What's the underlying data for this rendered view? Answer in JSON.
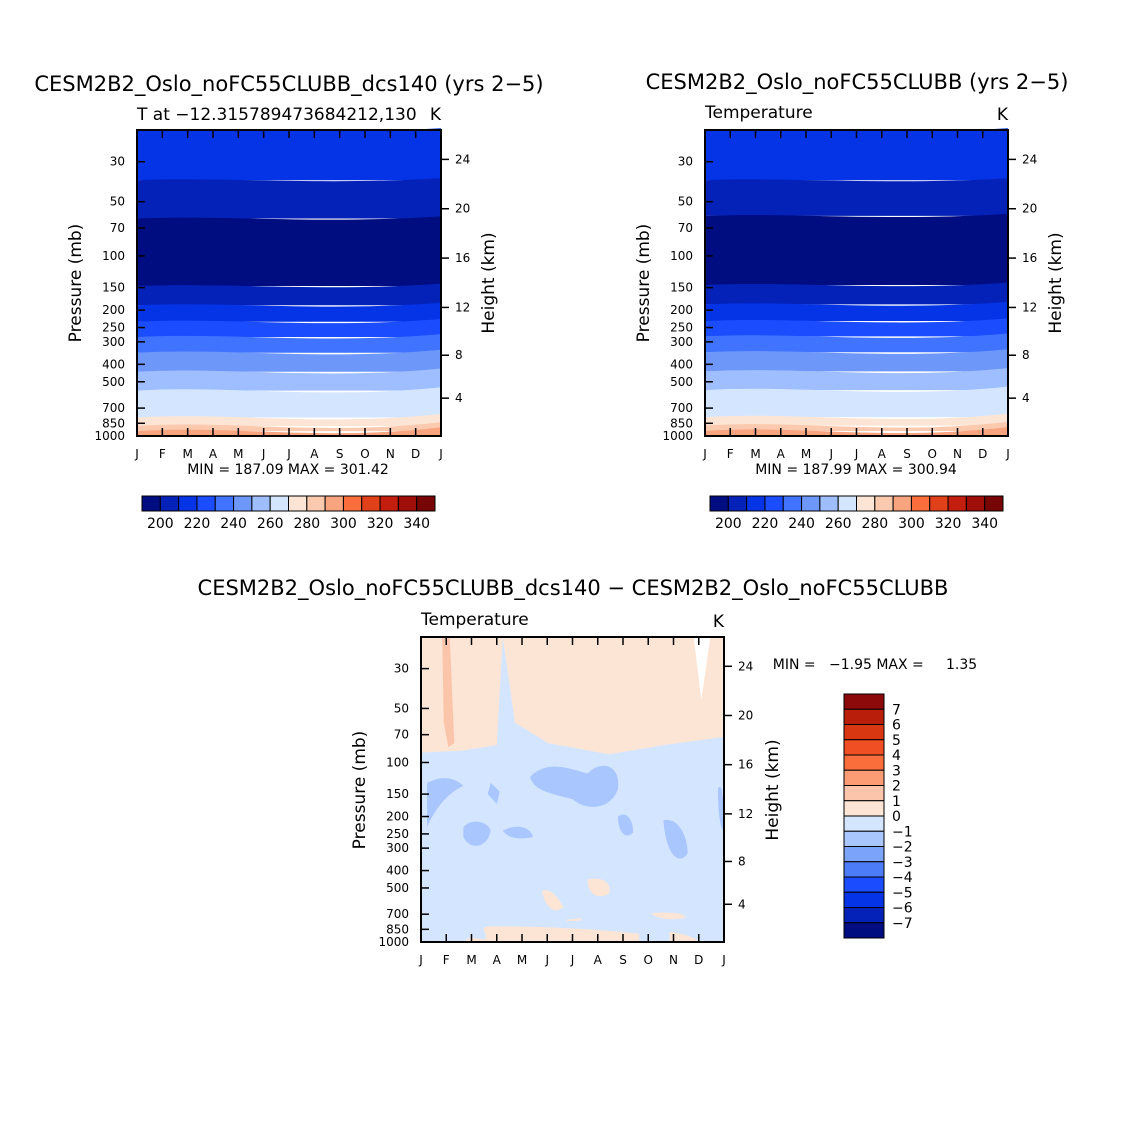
{
  "figure": {
    "background": "#ffffff"
  },
  "chart_data": [
    {
      "type": "contour",
      "title": "CESM2B2_Oslo_noFC55CLUBB_dcs140 (yrs 2−5)",
      "subtitle_left": "T at −12.315789473684212,130",
      "subtitle_right": "K",
      "xlabel": "",
      "ylabel": "Pressure (mb)",
      "ylabel_right": "Height (km)",
      "x_ticks": [
        "J",
        "F",
        "M",
        "A",
        "M",
        "J",
        "J",
        "A",
        "S",
        "O",
        "N",
        "D",
        "J"
      ],
      "y_ticks": [
        "30",
        "50",
        "70",
        "100",
        "150",
        "200",
        "250",
        "300",
        "400",
        "500",
        "700",
        "850",
        "1000"
      ],
      "y_ticks_right": [
        "24",
        "20",
        "16",
        "12",
        "8",
        "4"
      ],
      "y_range_mb": [
        20,
        1000
      ],
      "min_max_text": "MIN = 187.09 MAX = 301.42",
      "min": 187.09,
      "max": 301.42,
      "colorbar_labels": [
        "200",
        "220",
        "240",
        "260",
        "280",
        "300",
        "320",
        "340"
      ],
      "bands": [
        {
          "color": "#0533e6",
          "top_mb": 20,
          "bottom_mb": 38
        },
        {
          "color": "#0422b8",
          "top_mb": 38,
          "bottom_mb": 62
        },
        {
          "color": "#000d80",
          "top_mb": 62,
          "bottom_mb": 147
        },
        {
          "color": "#0422b8",
          "top_mb": 147,
          "bottom_mb": 188
        },
        {
          "color": "#0533e6",
          "top_mb": 188,
          "bottom_mb": 232
        },
        {
          "color": "#1b4dff",
          "top_mb": 232,
          "bottom_mb": 282
        },
        {
          "color": "#4073ff",
          "top_mb": 282,
          "bottom_mb": 345
        },
        {
          "color": "#6e97fa",
          "top_mb": 345,
          "bottom_mb": 440
        },
        {
          "color": "#9fbeff",
          "top_mb": 440,
          "bottom_mb": 560
        },
        {
          "color": "#d4e6ff",
          "top_mb": 560,
          "bottom_mb": 790
        },
        {
          "color": "#fde5d6",
          "top_mb": 790,
          "bottom_mb": 880
        },
        {
          "color": "#fbc9ad",
          "top_mb": 880,
          "bottom_mb": 940
        },
        {
          "color": "#f8a47f",
          "top_mb": 940,
          "bottom_mb": 1000
        }
      ]
    },
    {
      "type": "contour",
      "title": "CESM2B2_Oslo_noFC55CLUBB (yrs 2−5)",
      "subtitle_left": "Temperature",
      "subtitle_right": "K",
      "xlabel": "",
      "ylabel": "Pressure (mb)",
      "ylabel_right": "Height (km)",
      "x_ticks": [
        "J",
        "F",
        "M",
        "A",
        "M",
        "J",
        "J",
        "A",
        "S",
        "O",
        "N",
        "D",
        "J"
      ],
      "y_ticks": [
        "30",
        "50",
        "70",
        "100",
        "150",
        "200",
        "250",
        "300",
        "400",
        "500",
        "700",
        "850",
        "1000"
      ],
      "y_ticks_right": [
        "24",
        "20",
        "16",
        "12",
        "8",
        "4"
      ],
      "y_range_mb": [
        20,
        1000
      ],
      "min_max_text": "MIN = 187.99 MAX = 300.94",
      "min": 187.99,
      "max": 300.94,
      "colorbar_labels": [
        "200",
        "220",
        "240",
        "260",
        "280",
        "300",
        "320",
        "340"
      ],
      "bands": [
        {
          "color": "#0533e6",
          "top_mb": 20,
          "bottom_mb": 38
        },
        {
          "color": "#0422b8",
          "top_mb": 38,
          "bottom_mb": 60
        },
        {
          "color": "#000d80",
          "top_mb": 60,
          "bottom_mb": 145
        },
        {
          "color": "#0422b8",
          "top_mb": 145,
          "bottom_mb": 186
        },
        {
          "color": "#0533e6",
          "top_mb": 186,
          "bottom_mb": 230
        },
        {
          "color": "#1b4dff",
          "top_mb": 230,
          "bottom_mb": 280
        },
        {
          "color": "#4073ff",
          "top_mb": 280,
          "bottom_mb": 343
        },
        {
          "color": "#6e97fa",
          "top_mb": 343,
          "bottom_mb": 438
        },
        {
          "color": "#9fbeff",
          "top_mb": 438,
          "bottom_mb": 556
        },
        {
          "color": "#d4e6ff",
          "top_mb": 556,
          "bottom_mb": 786
        },
        {
          "color": "#fde5d6",
          "top_mb": 786,
          "bottom_mb": 876
        },
        {
          "color": "#fbc9ad",
          "top_mb": 876,
          "bottom_mb": 938
        },
        {
          "color": "#f8a47f",
          "top_mb": 938,
          "bottom_mb": 1000
        }
      ]
    },
    {
      "type": "contour",
      "title": "CESM2B2_Oslo_noFC55CLUBB_dcs140 − CESM2B2_Oslo_noFC55CLUBB",
      "subtitle_left": "Temperature",
      "subtitle_right": "K",
      "xlabel": "",
      "ylabel": "Pressure (mb)",
      "ylabel_right": "Height (km)",
      "x_ticks": [
        "J",
        "F",
        "M",
        "A",
        "M",
        "J",
        "J",
        "A",
        "S",
        "O",
        "N",
        "D",
        "J"
      ],
      "y_ticks": [
        "30",
        "50",
        "70",
        "100",
        "150",
        "200",
        "250",
        "300",
        "400",
        "500",
        "700",
        "850",
        "1000"
      ],
      "y_ticks_right": [
        "24",
        "20",
        "16",
        "12",
        "8",
        "4"
      ],
      "y_range_mb": [
        20,
        1000
      ],
      "min_max_text": "MIN =   −1.95 MAX =     1.35",
      "min": -1.95,
      "max": 1.35,
      "colorbar_labels": [
        "7",
        "6",
        "5",
        "4",
        "3",
        "2",
        "1",
        "0",
        "−1",
        "−2",
        "−3",
        "−4",
        "−5",
        "−6",
        "−7"
      ],
      "colorbar_colors": [
        "#8c0a0a",
        "#b81e0a",
        "#d93712",
        "#f04e23",
        "#fa6e3c",
        "#fb9c74",
        "#fbc5ab",
        "#fde5d6",
        "#d4e6ff",
        "#a9c6ff",
        "#7ca3fa",
        "#4d7cf8",
        "#1b4dff",
        "#0533e6",
        "#0422b8",
        "#000d80"
      ]
    }
  ],
  "colors": {
    "ramp": [
      "#000d80",
      "#0422b8",
      "#0533e6",
      "#1b4dff",
      "#4073ff",
      "#6e97fa",
      "#9fbeff",
      "#d4e6ff",
      "#fde5d6",
      "#fbc9ad",
      "#f8a47f",
      "#fa6e3c",
      "#e0411a",
      "#c41f0e",
      "#a00e0a",
      "#780505"
    ],
    "diff_base": "#d4e6ff",
    "diff_warm": "#fde5d6",
    "diff_warm2": "#fbc5ab",
    "diff_cool": "#a9c6ff",
    "diff_white": "#ffffff"
  }
}
